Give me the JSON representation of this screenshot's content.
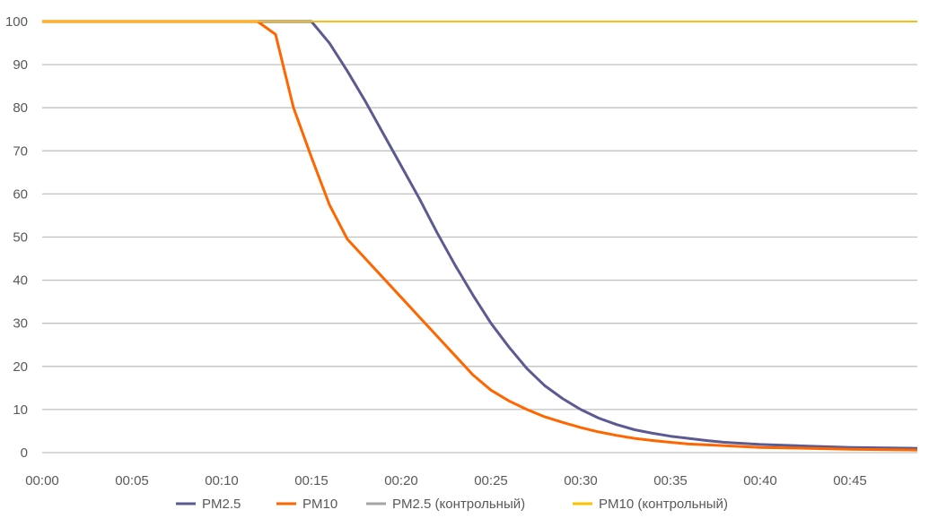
{
  "chart_data": {
    "type": "line",
    "title": "",
    "xlabel": "",
    "ylabel": "",
    "xlim_minutes": [
      0,
      48.75
    ],
    "ylim": [
      0,
      100
    ],
    "y_ticks": [
      0,
      10,
      20,
      30,
      40,
      50,
      60,
      70,
      80,
      90,
      100
    ],
    "x_ticks": [
      "00:00",
      "00:05",
      "00:10",
      "00:15",
      "00:20",
      "00:25",
      "00:30",
      "00:35",
      "00:40",
      "00:45"
    ],
    "grid": "horizontal",
    "legend_position": "bottom",
    "series": [
      {
        "name": "PM2.5",
        "color": "#5B5A92",
        "x": [
          0,
          15,
          16,
          17,
          18,
          19,
          20,
          21,
          22,
          23,
          24,
          25,
          26,
          27,
          28,
          29,
          30,
          31,
          32,
          33,
          34,
          35,
          36,
          37,
          38,
          40,
          42,
          45,
          48.75
        ],
        "values": [
          100,
          100,
          95,
          88.5,
          81.5,
          74,
          66.5,
          59,
          51,
          43.5,
          36.5,
          30,
          24.5,
          19.5,
          15.5,
          12.5,
          10,
          8,
          6.5,
          5.3,
          4.5,
          3.8,
          3.3,
          2.8,
          2.4,
          1.9,
          1.6,
          1.2,
          1.0
        ]
      },
      {
        "name": "PM10",
        "color": "#FF6600",
        "x": [
          0,
          12,
          13,
          14,
          15,
          16,
          17,
          18,
          19,
          20,
          21,
          22,
          23,
          24,
          25,
          26,
          27,
          28,
          29,
          30,
          31,
          32,
          33,
          34,
          35,
          36,
          38,
          40,
          45,
          48.75
        ],
        "values": [
          100,
          100,
          97,
          80,
          68.5,
          57.5,
          49.5,
          45,
          40.5,
          36,
          31.5,
          27,
          22.5,
          18,
          14.5,
          12,
          10,
          8.3,
          7,
          5.8,
          4.8,
          4,
          3.3,
          2.8,
          2.4,
          2,
          1.6,
          1.2,
          0.8,
          0.6
        ]
      },
      {
        "name": "PM2.5 (контрольный)",
        "color": "#A5A5A5",
        "x": [
          0,
          48.75
        ],
        "values": [
          100,
          100
        ]
      },
      {
        "name": "PM10  (контрольный)",
        "color": "#FFC000",
        "x": [
          0,
          48.75
        ],
        "values": [
          100,
          100
        ]
      }
    ]
  }
}
